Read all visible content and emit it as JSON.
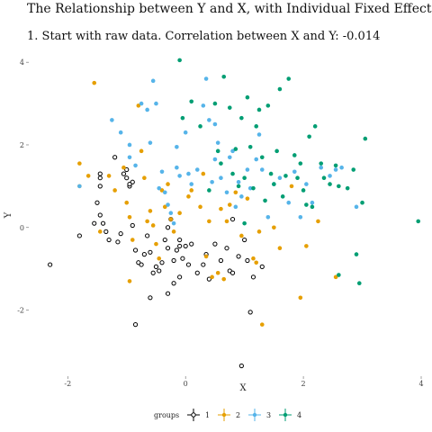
{
  "header": {
    "title": "The Relationship between Y and X, with Individual Fixed Effects",
    "subtitle": "1. Start with raw data. Correlation between X and Y: -0.014"
  },
  "colors": {
    "1": "#000000",
    "2": "#E69F00",
    "3": "#56B4E9",
    "4": "#009E73"
  },
  "chart_data": {
    "type": "scatter",
    "xlabel": "X",
    "ylabel": "Y",
    "xlim": [
      -2.6,
      4.0
    ],
    "ylim": [
      -3.6,
      4.2
    ],
    "xticks": [
      "-2",
      "0",
      "2",
      "4"
    ],
    "yticks": [
      "-2",
      "0",
      "2",
      "4"
    ],
    "legend": {
      "title": "groups",
      "placement": "bottom",
      "labels": [
        "1",
        "2",
        "3",
        "4"
      ]
    },
    "grid": false,
    "series": [
      {
        "name": "1",
        "points": [
          [
            -2.3,
            -0.9
          ],
          [
            -1.8,
            -0.2
          ],
          [
            -1.45,
            1.3
          ],
          [
            -1.45,
            1.2
          ],
          [
            -1.45,
            1.0
          ],
          [
            -1.5,
            0.6
          ],
          [
            -1.55,
            0.1
          ],
          [
            -1.4,
            0.1
          ],
          [
            -1.35,
            -0.1
          ],
          [
            -1.3,
            -0.3
          ],
          [
            -1.2,
            1.7
          ],
          [
            -1.15,
            -0.35
          ],
          [
            -1.1,
            -0.15
          ],
          [
            -1.05,
            1.3
          ],
          [
            -1.0,
            1.4
          ],
          [
            -1.0,
            1.2
          ],
          [
            -0.95,
            1.0
          ],
          [
            -0.9,
            1.1
          ],
          [
            -0.9,
            0.05
          ],
          [
            -0.85,
            -0.55
          ],
          [
            -0.8,
            -0.85
          ],
          [
            -0.75,
            -0.9
          ],
          [
            -0.7,
            -0.65
          ],
          [
            -0.65,
            -0.2
          ],
          [
            -0.6,
            -0.6
          ],
          [
            -0.55,
            -1.1
          ],
          [
            -0.5,
            -0.95
          ],
          [
            -0.45,
            -1.05
          ],
          [
            -0.4,
            -0.85
          ],
          [
            -0.35,
            -0.3
          ],
          [
            -0.3,
            0.0
          ],
          [
            -0.3,
            -0.5
          ],
          [
            -0.25,
            0.2
          ],
          [
            -0.2,
            -0.8
          ],
          [
            -0.15,
            -0.55
          ],
          [
            -0.1,
            -0.3
          ],
          [
            -0.05,
            -0.75
          ],
          [
            0.0,
            -0.45
          ],
          [
            0.05,
            -0.9
          ],
          [
            -0.1,
            -1.2
          ],
          [
            -0.2,
            -1.35
          ],
          [
            -0.1,
            -0.45
          ],
          [
            0.1,
            -0.4
          ],
          [
            0.2,
            -1.1
          ],
          [
            0.3,
            -0.9
          ],
          [
            0.35,
            -0.65
          ],
          [
            0.4,
            -1.25
          ],
          [
            0.5,
            -0.4
          ],
          [
            0.6,
            -0.8
          ],
          [
            0.7,
            -0.5
          ],
          [
            0.75,
            -1.05
          ],
          [
            0.8,
            -1.1
          ],
          [
            0.9,
            -0.7
          ],
          [
            1.0,
            -0.3
          ],
          [
            1.05,
            -0.8
          ],
          [
            1.15,
            -1.2
          ],
          [
            1.3,
            -0.95
          ],
          [
            1.1,
            -2.05
          ],
          [
            -0.3,
            -1.6
          ],
          [
            -0.6,
            -1.7
          ],
          [
            -0.85,
            -2.35
          ],
          [
            0.95,
            -3.35
          ],
          [
            0.8,
            0.2
          ],
          [
            -0.95,
            1.05
          ],
          [
            -1.45,
            0.3
          ]
        ]
      },
      {
        "name": "2",
        "points": [
          [
            -1.55,
            3.5
          ],
          [
            -1.8,
            1.55
          ],
          [
            -1.65,
            1.25
          ],
          [
            -1.8,
            1.0
          ],
          [
            -1.3,
            1.25
          ],
          [
            -1.2,
            0.9
          ],
          [
            -1.05,
            1.45
          ],
          [
            -1.0,
            0.6
          ],
          [
            -0.95,
            0.25
          ],
          [
            -0.9,
            -0.3
          ],
          [
            -0.8,
            2.95
          ],
          [
            -0.75,
            1.85
          ],
          [
            -0.7,
            1.2
          ],
          [
            -0.65,
            0.15
          ],
          [
            -0.6,
            0.4
          ],
          [
            -0.55,
            0.05
          ],
          [
            -0.5,
            -0.4
          ],
          [
            -0.45,
            -0.75
          ],
          [
            -0.4,
            0.9
          ],
          [
            -0.35,
            0.5
          ],
          [
            -0.3,
            1.05
          ],
          [
            -0.25,
            0.2
          ],
          [
            -0.2,
            -0.1
          ],
          [
            -0.1,
            0.35
          ],
          [
            0.05,
            0.75
          ],
          [
            0.1,
            0.9
          ],
          [
            0.25,
            0.5
          ],
          [
            0.3,
            1.3
          ],
          [
            0.35,
            -0.7
          ],
          [
            0.4,
            0.15
          ],
          [
            0.45,
            -1.2
          ],
          [
            0.55,
            -1.1
          ],
          [
            0.6,
            0.45
          ],
          [
            0.65,
            -1.25
          ],
          [
            0.7,
            0.15
          ],
          [
            0.75,
            0.55
          ],
          [
            0.85,
            0.85
          ],
          [
            0.95,
            -0.2
          ],
          [
            1.05,
            0.7
          ],
          [
            1.15,
            -0.75
          ],
          [
            1.2,
            -0.85
          ],
          [
            1.3,
            -2.35
          ],
          [
            1.5,
            0.0
          ],
          [
            1.6,
            -0.5
          ],
          [
            1.8,
            1.0
          ],
          [
            1.95,
            -1.7
          ],
          [
            2.05,
            -0.45
          ],
          [
            2.25,
            0.15
          ],
          [
            2.55,
            -1.2
          ],
          [
            -1.45,
            -0.1
          ],
          [
            -0.95,
            -1.3
          ],
          [
            1.25,
            -0.1
          ]
        ]
      },
      {
        "name": "3",
        "points": [
          [
            -1.8,
            1.0
          ],
          [
            -1.25,
            2.6
          ],
          [
            -1.1,
            2.3
          ],
          [
            -0.95,
            2.0
          ],
          [
            -0.95,
            1.7
          ],
          [
            -0.85,
            1.5
          ],
          [
            -0.75,
            3.0
          ],
          [
            -0.65,
            2.85
          ],
          [
            -0.55,
            3.55
          ],
          [
            -0.5,
            3.0
          ],
          [
            -0.45,
            0.95
          ],
          [
            -0.4,
            1.35
          ],
          [
            -0.35,
            0.85
          ],
          [
            -0.3,
            0.55
          ],
          [
            -0.25,
            0.35
          ],
          [
            -0.2,
            0.1
          ],
          [
            -0.15,
            1.45
          ],
          [
            -0.1,
            1.25
          ],
          [
            0.0,
            2.3
          ],
          [
            0.05,
            1.3
          ],
          [
            0.1,
            1.05
          ],
          [
            0.2,
            1.4
          ],
          [
            0.3,
            2.95
          ],
          [
            0.35,
            3.6
          ],
          [
            0.4,
            2.6
          ],
          [
            0.45,
            1.1
          ],
          [
            0.5,
            1.65
          ],
          [
            0.55,
            2.05
          ],
          [
            0.6,
            1.2
          ],
          [
            0.7,
            0.85
          ],
          [
            0.75,
            1.7
          ],
          [
            0.8,
            1.85
          ],
          [
            0.85,
            0.5
          ],
          [
            0.9,
            1.1
          ],
          [
            0.95,
            0.75
          ],
          [
            1.05,
            1.4
          ],
          [
            1.1,
            0.95
          ],
          [
            1.2,
            1.65
          ],
          [
            1.25,
            2.25
          ],
          [
            1.3,
            1.4
          ],
          [
            1.4,
            0.25
          ],
          [
            1.5,
            1.05
          ],
          [
            1.6,
            1.2
          ],
          [
            1.75,
            0.6
          ],
          [
            1.85,
            1.35
          ],
          [
            1.95,
            0.25
          ],
          [
            2.05,
            1.05
          ],
          [
            2.15,
            0.6
          ],
          [
            2.3,
            1.45
          ],
          [
            2.45,
            1.25
          ],
          [
            2.55,
            1.4
          ],
          [
            2.65,
            1.45
          ],
          [
            2.9,
            0.5
          ],
          [
            -0.6,
            2.05
          ],
          [
            -0.15,
            1.95
          ],
          [
            0.5,
            2.5
          ]
        ]
      },
      {
        "name": "4",
        "points": [
          [
            -0.1,
            4.05
          ],
          [
            0.1,
            3.05
          ],
          [
            -0.05,
            2.65
          ],
          [
            0.25,
            2.45
          ],
          [
            0.5,
            3.0
          ],
          [
            0.55,
            1.85
          ],
          [
            0.6,
            1.55
          ],
          [
            0.65,
            3.65
          ],
          [
            0.75,
            2.9
          ],
          [
            0.8,
            1.3
          ],
          [
            0.85,
            1.9
          ],
          [
            0.9,
            1.0
          ],
          [
            0.95,
            2.65
          ],
          [
            1.0,
            1.2
          ],
          [
            1.05,
            3.15
          ],
          [
            1.1,
            1.95
          ],
          [
            1.15,
            0.95
          ],
          [
            1.2,
            2.45
          ],
          [
            1.25,
            2.85
          ],
          [
            1.3,
            1.7
          ],
          [
            1.35,
            0.65
          ],
          [
            1.4,
            2.95
          ],
          [
            1.45,
            1.3
          ],
          [
            1.5,
            1.05
          ],
          [
            1.55,
            1.85
          ],
          [
            1.6,
            3.35
          ],
          [
            1.65,
            0.75
          ],
          [
            1.7,
            1.25
          ],
          [
            1.75,
            3.6
          ],
          [
            1.85,
            1.75
          ],
          [
            1.9,
            1.2
          ],
          [
            1.95,
            1.55
          ],
          [
            2.0,
            0.9
          ],
          [
            2.05,
            0.55
          ],
          [
            2.1,
            2.2
          ],
          [
            2.2,
            2.45
          ],
          [
            2.3,
            1.55
          ],
          [
            2.35,
            1.2
          ],
          [
            2.45,
            1.05
          ],
          [
            2.55,
            1.5
          ],
          [
            2.6,
            1.0
          ],
          [
            2.75,
            0.95
          ],
          [
            2.85,
            1.4
          ],
          [
            2.95,
            -1.35
          ],
          [
            3.0,
            0.6
          ],
          [
            3.05,
            2.15
          ],
          [
            3.95,
            0.15
          ],
          [
            2.6,
            -1.15
          ],
          [
            2.9,
            -0.65
          ],
          [
            2.15,
            0.5
          ],
          [
            1.0,
            0.1
          ],
          [
            0.4,
            0.9
          ]
        ]
      }
    ]
  }
}
